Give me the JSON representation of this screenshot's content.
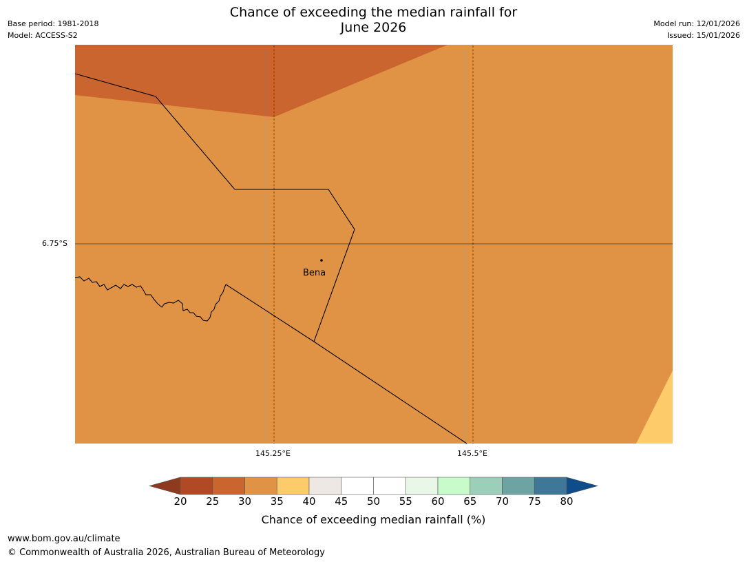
{
  "title": {
    "line1": "Chance of exceeding the median rainfall for",
    "line2": "June 2026"
  },
  "meta": {
    "base_period": "Base period: 1981-2018",
    "model": "Model: ACCESS-S2",
    "model_run": "Model run: 12/01/2026",
    "issued": "Issued: 15/01/2026"
  },
  "map": {
    "place_label": "Bena",
    "lat_label": "6.75°S",
    "lon_labels": [
      "145.25°E",
      "145.5°E"
    ]
  },
  "colorbar": {
    "label": "Chance of exceeding median rainfall (%)",
    "ticks": [
      "20",
      "25",
      "30",
      "35",
      "40",
      "45",
      "50",
      "55",
      "60",
      "65",
      "70",
      "75",
      "80"
    ],
    "below_color": "#8e3a1e",
    "above_color": "#0f4d8a",
    "colors": [
      "#b14a24",
      "#cb6530",
      "#e09344",
      "#fdcb6a",
      "#ede8e4",
      "#ffffff",
      "#ffffff",
      "#e9f7e9",
      "#c7fbc9",
      "#9ccfb9",
      "#6da4a3",
      "#3e7798"
    ]
  },
  "footer": {
    "url": "www.bom.gov.au/climate",
    "copyright": "© Commonwealth of Australia 2026, Australian Bureau of Meteorology"
  }
}
